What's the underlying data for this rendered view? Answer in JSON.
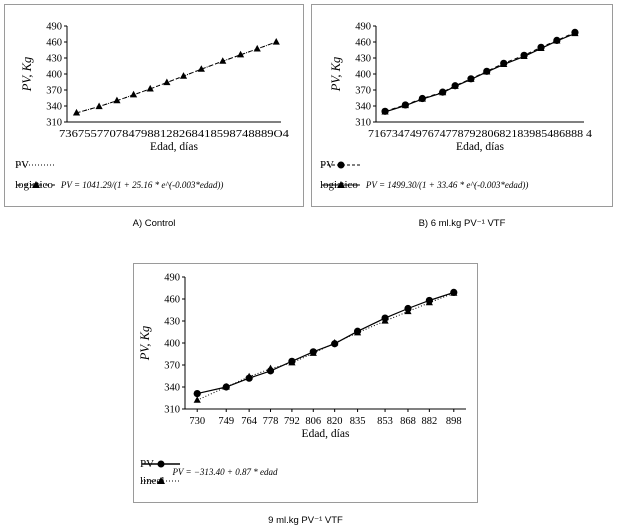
{
  "chart_data": [
    {
      "type": "line",
      "xlabel": "Edad, días",
      "ylabel": "PV, Kg",
      "x_tick_labels_text": "7367557707847988128268418598748889O4",
      "y_ticks": [
        310,
        340,
        370,
        400,
        430,
        460,
        490
      ],
      "ylim": [
        310,
        490
      ],
      "xlim": [
        728,
        908
      ],
      "grid": false,
      "legend_position": "bottom",
      "caption": "A) Control",
      "series": [
        {
          "name": "PV",
          "style": "dotted",
          "marker": "none",
          "color": "#000000",
          "x": [
            736,
            755,
            770,
            784,
            798,
            812,
            826,
            841,
            859,
            874,
            888,
            904
          ],
          "y": [
            327,
            339,
            350,
            361,
            372,
            384,
            396,
            409,
            424,
            436,
            447,
            460
          ]
        },
        {
          "name": "logistico",
          "style": "dashed",
          "marker": "triangle",
          "color": "#000000",
          "formula": "PV = 1041.29/(1 + 25.16 * e^(-0.003*edad))",
          "x": [
            736,
            755,
            770,
            784,
            798,
            812,
            826,
            841,
            859,
            874,
            888,
            904
          ],
          "y": [
            327,
            339,
            350,
            361,
            372,
            384,
            396,
            409,
            424,
            436,
            447,
            460
          ]
        }
      ]
    },
    {
      "type": "line",
      "xlabel": "Edad, días",
      "ylabel": "PV, Kg",
      "x_tick_labels_text": "716734749767477879280682183985486888 4",
      "y_ticks": [
        310,
        340,
        370,
        400,
        430,
        460,
        490
      ],
      "ylim": [
        310,
        490
      ],
      "xlim": [
        708,
        892
      ],
      "grid": false,
      "legend_position": "bottom",
      "caption": "B) 6 ml.kg PV⁻¹ VTF",
      "series": [
        {
          "name": "PV",
          "style": "dashed",
          "marker": "circle",
          "color": "#000000",
          "x": [
            716,
            734,
            749,
            767,
            778,
            792,
            806,
            821,
            839,
            854,
            868,
            884
          ],
          "y": [
            330,
            342,
            354,
            366,
            378,
            391,
            405,
            420,
            435,
            450,
            463,
            478
          ]
        },
        {
          "name": "logistico",
          "style": "solid",
          "marker": "triangle",
          "color": "#000000",
          "formula": "PV = 1499.30/(1 + 33.46 * e^(-0.003*edad))",
          "x": [
            716,
            734,
            749,
            767,
            778,
            792,
            806,
            821,
            839,
            854,
            868,
            884
          ],
          "y": [
            329,
            341,
            353,
            365,
            377,
            390,
            404,
            418,
            433,
            448,
            462,
            476
          ]
        }
      ]
    },
    {
      "type": "line",
      "xlabel": "Edad, días",
      "ylabel": "PV, Kg",
      "x_ticks": [
        730,
        749,
        764,
        778,
        792,
        806,
        820,
        835,
        853,
        868,
        882,
        898
      ],
      "y_ticks": [
        310,
        340,
        370,
        400,
        430,
        460,
        490
      ],
      "ylim": [
        310,
        490
      ],
      "xlim": [
        722,
        906
      ],
      "grid": false,
      "legend_position": "bottom",
      "caption": "9 ml.kg PV⁻¹ VTF",
      "series": [
        {
          "name": "PV",
          "style": "solid",
          "marker": "circle",
          "color": "#000000",
          "x": [
            730,
            749,
            764,
            778,
            792,
            806,
            820,
            835,
            853,
            868,
            882,
            898
          ],
          "y": [
            331,
            340,
            352,
            362,
            375,
            388,
            399,
            416,
            434,
            447,
            458,
            469
          ]
        },
        {
          "name": "lineal",
          "style": "dotted",
          "marker": "triangle",
          "color": "#000000",
          "formula": "PV = −313.40 + 0.87 * edad",
          "x": [
            730,
            749,
            764,
            778,
            792,
            806,
            820,
            835,
            853,
            868,
            882,
            898
          ],
          "y": [
            322,
            340,
            354,
            365,
            373,
            386,
            400,
            414,
            430,
            443,
            455,
            468
          ]
        }
      ]
    }
  ]
}
